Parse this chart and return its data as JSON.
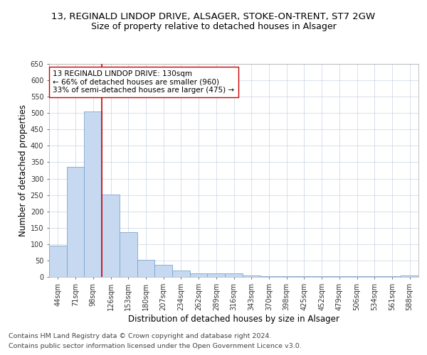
{
  "title_line1": "13, REGINALD LINDOP DRIVE, ALSAGER, STOKE-ON-TRENT, ST7 2GW",
  "title_line2": "Size of property relative to detached houses in Alsager",
  "xlabel": "Distribution of detached houses by size in Alsager",
  "ylabel": "Number of detached properties",
  "categories": [
    "44sqm",
    "71sqm",
    "98sqm",
    "126sqm",
    "153sqm",
    "180sqm",
    "207sqm",
    "234sqm",
    "262sqm",
    "289sqm",
    "316sqm",
    "343sqm",
    "370sqm",
    "398sqm",
    "425sqm",
    "452sqm",
    "479sqm",
    "506sqm",
    "534sqm",
    "561sqm",
    "588sqm"
  ],
  "values": [
    95,
    335,
    505,
    252,
    137,
    53,
    37,
    20,
    10,
    10,
    10,
    5,
    2,
    2,
    2,
    2,
    2,
    2,
    2,
    2,
    5
  ],
  "bar_color": "#c6d9f0",
  "bar_edge_color": "#7ca6d0",
  "bar_linewidth": 0.6,
  "vline_color": "#cc0000",
  "vline_linewidth": 1.2,
  "vline_x": 2.5,
  "annotation_text": "13 REGINALD LINDOP DRIVE: 130sqm\n← 66% of detached houses are smaller (960)\n33% of semi-detached houses are larger (475) →",
  "annotation_box_color": "#ffffff",
  "annotation_box_edge": "#cc0000",
  "ylim": [
    0,
    650
  ],
  "yticks": [
    0,
    50,
    100,
    150,
    200,
    250,
    300,
    350,
    400,
    450,
    500,
    550,
    600,
    650
  ],
  "footer_line1": "Contains HM Land Registry data © Crown copyright and database right 2024.",
  "footer_line2": "Contains public sector information licensed under the Open Government Licence v3.0.",
  "bg_color": "#ffffff",
  "grid_color": "#c8d4e3",
  "title_fontsize": 9.5,
  "subtitle_fontsize": 9.0,
  "axis_label_fontsize": 8.5,
  "tick_fontsize": 7.0,
  "annotation_fontsize": 7.5,
  "footer_fontsize": 6.8
}
